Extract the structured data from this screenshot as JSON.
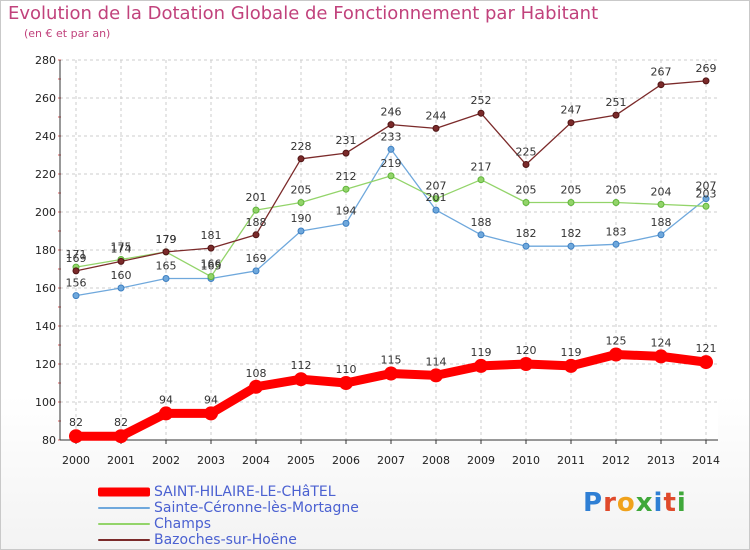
{
  "title": "Evolution de la Dotation Globale de Fonctionnement par Habitant",
  "subtitle": "(en € et par an)",
  "logo_text": "Proxiti",
  "colors": {
    "title": "#c1427c",
    "legend_text": "#4b61d1",
    "grid": "#cccccc",
    "axis": "#333333"
  },
  "chart_data": {
    "type": "line",
    "title": "Evolution de la Dotation Globale de Fonctionnement par Habitant",
    "subtitle": "(en € et par an)",
    "xlabel": "",
    "ylabel": "",
    "ylim": [
      80,
      280
    ],
    "yticks": [
      80,
      100,
      120,
      140,
      160,
      180,
      200,
      220,
      240,
      260,
      280
    ],
    "grid": true,
    "legend_position": "bottom-left",
    "x": [
      "2000",
      "2001",
      "2002",
      "2003",
      "2004",
      "2005",
      "2006",
      "2007",
      "2008",
      "2009",
      "2010",
      "2011",
      "2012",
      "2013",
      "2014"
    ],
    "series": [
      {
        "name": "SAINT-HILAIRE-LE-CHâTEL",
        "color": "#ff0000",
        "values": [
          82,
          82,
          94,
          94,
          108,
          112,
          110,
          115,
          114,
          119,
          120,
          119,
          125,
          124,
          121
        ]
      },
      {
        "name": "Sainte-Céronne-lès-Mortagne",
        "color": "#6fa8dc",
        "values": [
          156,
          160,
          165,
          165,
          169,
          190,
          194,
          233,
          201,
          188,
          182,
          182,
          183,
          188,
          207
        ]
      },
      {
        "name": "Champs",
        "color": "#93d46a",
        "values": [
          171,
          175,
          179,
          166,
          201,
          205,
          212,
          219,
          207,
          217,
          205,
          205,
          205,
          204,
          203
        ]
      },
      {
        "name": "Bazoches-sur-Hoëne",
        "color": "#7b2a2a",
        "values": [
          169,
          174,
          179,
          181,
          188,
          228,
          231,
          246,
          244,
          252,
          225,
          247,
          251,
          267,
          269
        ]
      }
    ]
  }
}
